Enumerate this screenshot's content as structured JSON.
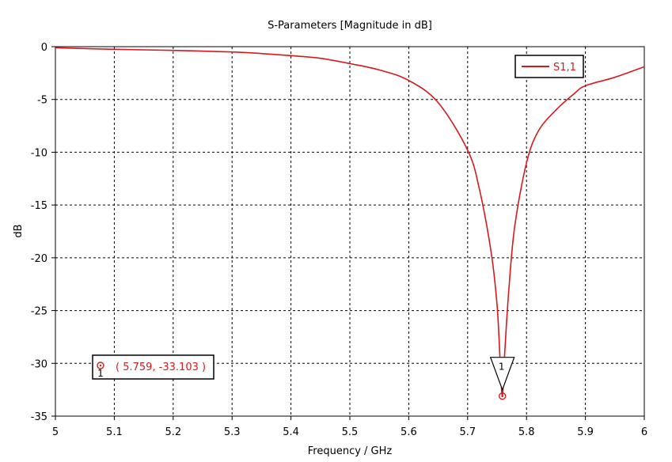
{
  "chart_data": {
    "type": "line",
    "title": "S-Parameters [Magnitude in dB]",
    "xlabel": "Frequency / GHz",
    "ylabel": "dB",
    "xlim": [
      5,
      6
    ],
    "ylim": [
      -35,
      0
    ],
    "xticks": [
      "5",
      "5.1",
      "5.2",
      "5.3",
      "5.4",
      "5.5",
      "5.6",
      "5.7",
      "5.8",
      "5.9",
      "6"
    ],
    "yticks": [
      "0",
      "-5",
      "-10",
      "-15",
      "-20",
      "-25",
      "-30",
      "-35"
    ],
    "grid": true,
    "legend_position": "top-right",
    "series": [
      {
        "name": "S1,1",
        "color": "#d7191c",
        "x": [
          5.0,
          5.1,
          5.2,
          5.3,
          5.35,
          5.4,
          5.45,
          5.5,
          5.55,
          5.6,
          5.65,
          5.7,
          5.72,
          5.74,
          5.75,
          5.755,
          5.759,
          5.763,
          5.77,
          5.78,
          5.8,
          5.82,
          5.85,
          5.88,
          5.9,
          5.95,
          6.0
        ],
        "y": [
          -0.1,
          -0.25,
          -0.35,
          -0.5,
          -0.65,
          -0.85,
          -1.1,
          -1.6,
          -2.2,
          -3.2,
          -5.3,
          -9.8,
          -13.5,
          -19.5,
          -24.5,
          -29.5,
          -33.103,
          -29.0,
          -23.0,
          -17.0,
          -11.0,
          -8.0,
          -6.0,
          -4.5,
          -3.7,
          -2.9,
          -1.9
        ]
      }
    ],
    "marker": {
      "id": "1",
      "x": 5.759,
      "y": -33.103,
      "label": "( 5.759, -33.103 )"
    }
  }
}
